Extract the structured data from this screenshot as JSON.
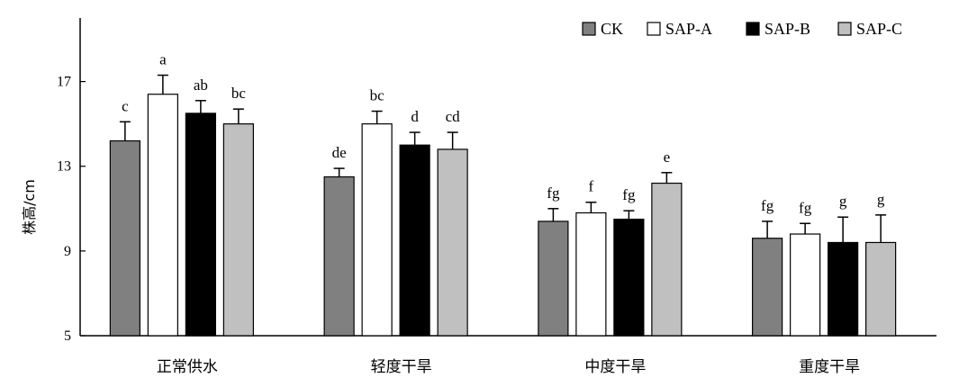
{
  "chart_data": {
    "type": "bar",
    "title": "",
    "xlabel": "",
    "ylabel": "株高/cm",
    "ylim": [
      5,
      20
    ],
    "yticks": [
      5,
      9,
      13,
      17
    ],
    "grid": false,
    "legend_position": "top-right",
    "categories": [
      "正常供水",
      "轻度干旱",
      "中度干旱",
      "重度干旱"
    ],
    "series": [
      {
        "name": "CK",
        "color": "#808080",
        "values": [
          14.2,
          12.5,
          10.4,
          9.6
        ],
        "errors": [
          0.9,
          0.4,
          0.6,
          0.8
        ],
        "labels": [
          "c",
          "de",
          "fg",
          "fg"
        ]
      },
      {
        "name": "SAP-A",
        "color": "#ffffff",
        "values": [
          16.4,
          15.0,
          10.8,
          9.8
        ],
        "errors": [
          0.9,
          0.6,
          0.5,
          0.5
        ],
        "labels": [
          "a",
          "bc",
          "f",
          "fg"
        ]
      },
      {
        "name": "SAP-B",
        "color": "#000000",
        "values": [
          15.5,
          14.0,
          10.5,
          9.4
        ],
        "errors": [
          0.6,
          0.6,
          0.4,
          1.2
        ],
        "labels": [
          "ab",
          "d",
          "fg",
          "g"
        ]
      },
      {
        "name": "SAP-C",
        "color": "#c0c0c0",
        "values": [
          15.0,
          13.8,
          12.2,
          9.4
        ],
        "errors": [
          0.7,
          0.8,
          0.5,
          1.3
        ],
        "labels": [
          "bc",
          "cd",
          "e",
          "g"
        ]
      }
    ]
  }
}
